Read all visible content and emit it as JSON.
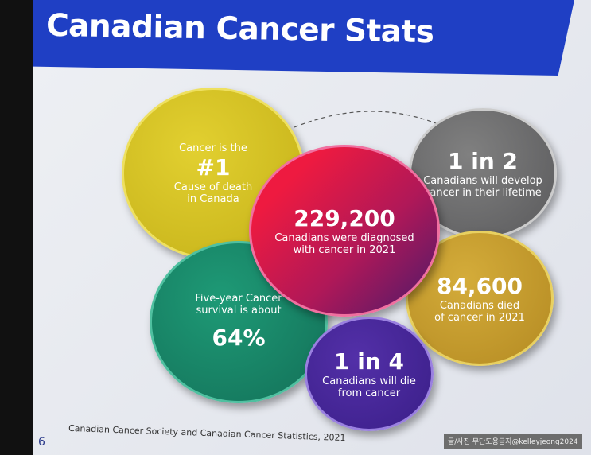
{
  "title": "Canadian Cancer Stats",
  "circles": {
    "yellow": {
      "line1": "Cancer is the",
      "big": "#1",
      "line2": "Cause of death",
      "line3": "in Canada",
      "color": "#d4c21e"
    },
    "grey": {
      "big": "1 in 2",
      "line1": "Canadians will develop",
      "line2": "cancer in their lifetime",
      "color": "#6f6f70"
    },
    "center": {
      "big": "229,200",
      "line1": "Canadians were diagnosed",
      "line2": "with cancer in 2021",
      "color": "#e0184a"
    },
    "gold": {
      "big": "84,600",
      "line1": "Canadians died",
      "line2": "of cancer in 2021",
      "color": "#c9a030"
    },
    "teal": {
      "line1": "Five-year Cancer",
      "line2": "survival is about",
      "big": "64%",
      "color": "#1a8a6a"
    },
    "purple": {
      "big": "1 in 4",
      "line1": "Canadians will die",
      "line2": "from cancer",
      "color": "#4a2a9a"
    }
  },
  "source": "Canadian Cancer Society and Canadian Cancer Statistics, 2021",
  "page_number": "6",
  "watermark": "글/사진 무단도용금지@kelleyjeong2024"
}
